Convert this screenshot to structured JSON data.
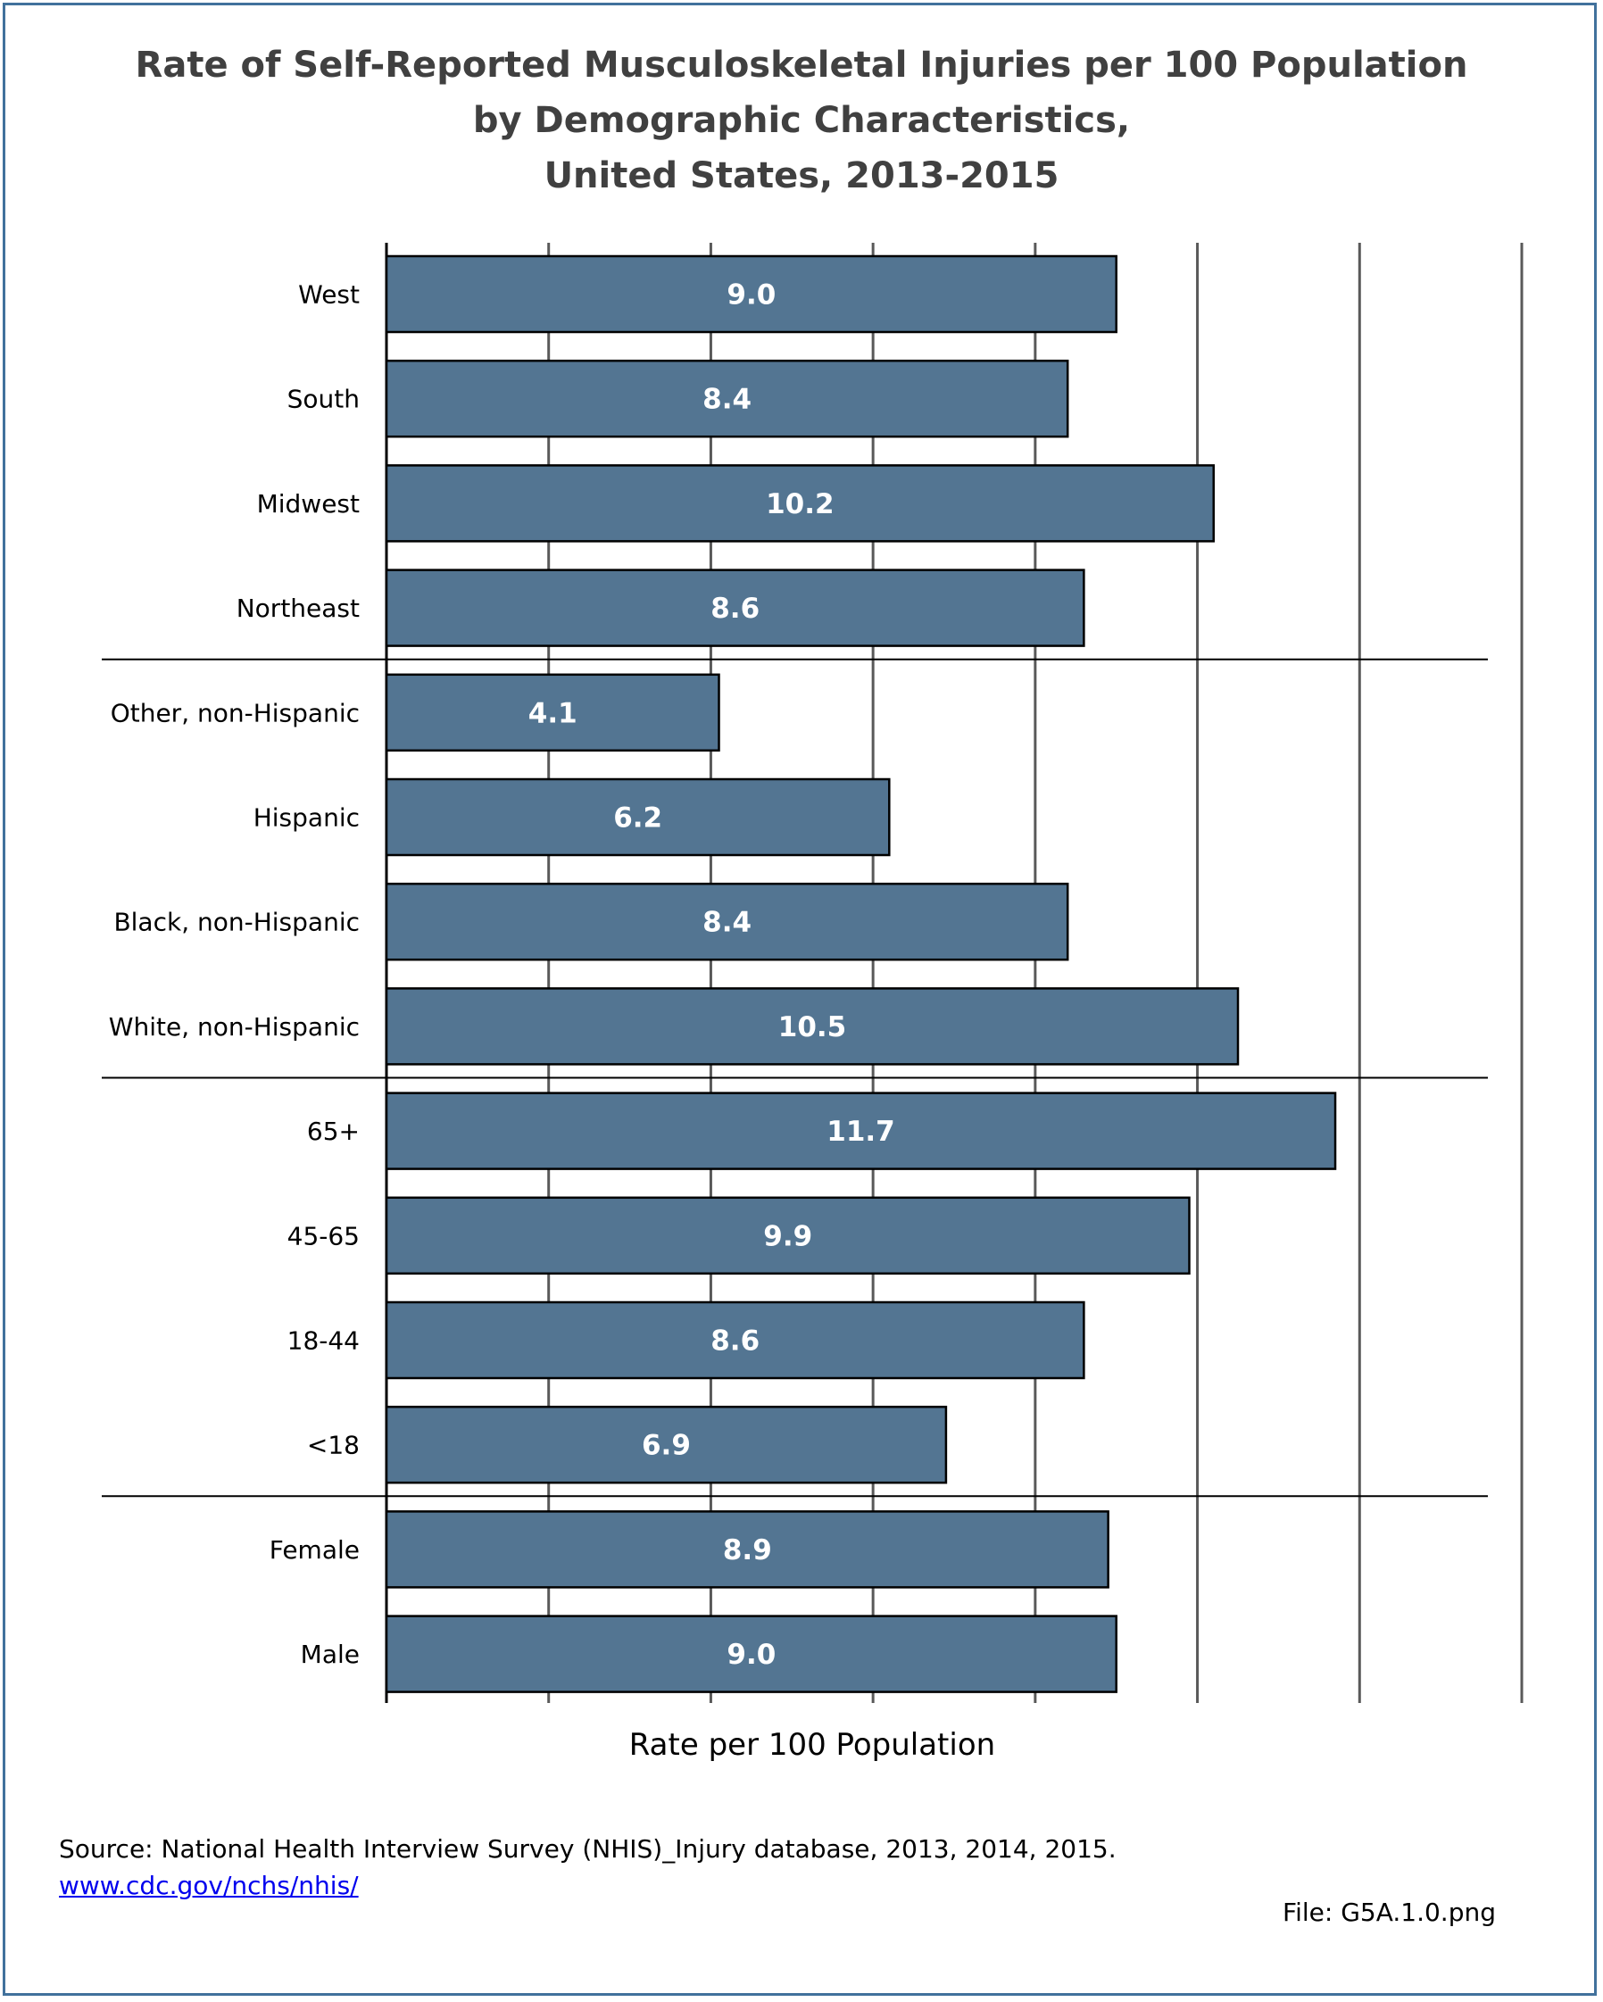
{
  "chart_data": {
    "type": "bar",
    "orientation": "horizontal",
    "title_lines": [
      "Rate of Self-Reported Musculoskeletal Injuries per 100 Population",
      "by Demographic Characteristics,",
      "United States, 2013-2015"
    ],
    "xlabel": "Rate per 100 Population",
    "xlim": [
      0,
      14
    ],
    "grid": true,
    "categories": [
      "West",
      "South",
      "Midwest",
      "Northeast",
      "Other, non-Hispanic",
      "Hispanic",
      "Black, non-Hispanic",
      "White, non-Hispanic",
      "65+",
      "45-65",
      "18-44",
      "<18",
      "Female",
      "Male"
    ],
    "values": [
      9.0,
      8.4,
      10.2,
      8.6,
      4.1,
      6.2,
      8.4,
      10.5,
      11.7,
      9.9,
      8.6,
      6.9,
      8.9,
      9.0
    ],
    "data_labels": [
      "9.0",
      "8.4",
      "10.2",
      "8.6",
      "4.1",
      "6.2",
      "8.4",
      "10.5",
      "11.7",
      "9.9",
      "8.6",
      "6.9",
      "8.9",
      "9.0"
    ],
    "groups": [
      [
        "West",
        "South",
        "Midwest",
        "Northeast"
      ],
      [
        "Other, non-Hispanic",
        "Hispanic",
        "Black, non-Hispanic",
        "White, non-Hispanic"
      ],
      [
        "65+",
        "45-65",
        "18-44",
        "<18"
      ],
      [
        "Female",
        "Male"
      ]
    ],
    "bar_color": "#537592",
    "bar_edge_color": "#000000",
    "label_color": "#ffffff"
  },
  "footer": {
    "source": "Source: National Health Interview Survey (NHIS)_Injury database, 2013, 2014, 2015.",
    "link": "www.cdc.gov/nchs/nhis/",
    "file": "File: G5A.1.0.png"
  },
  "colors": {
    "frame": "#41719c",
    "title": "#404040",
    "gridline": "#595959"
  }
}
